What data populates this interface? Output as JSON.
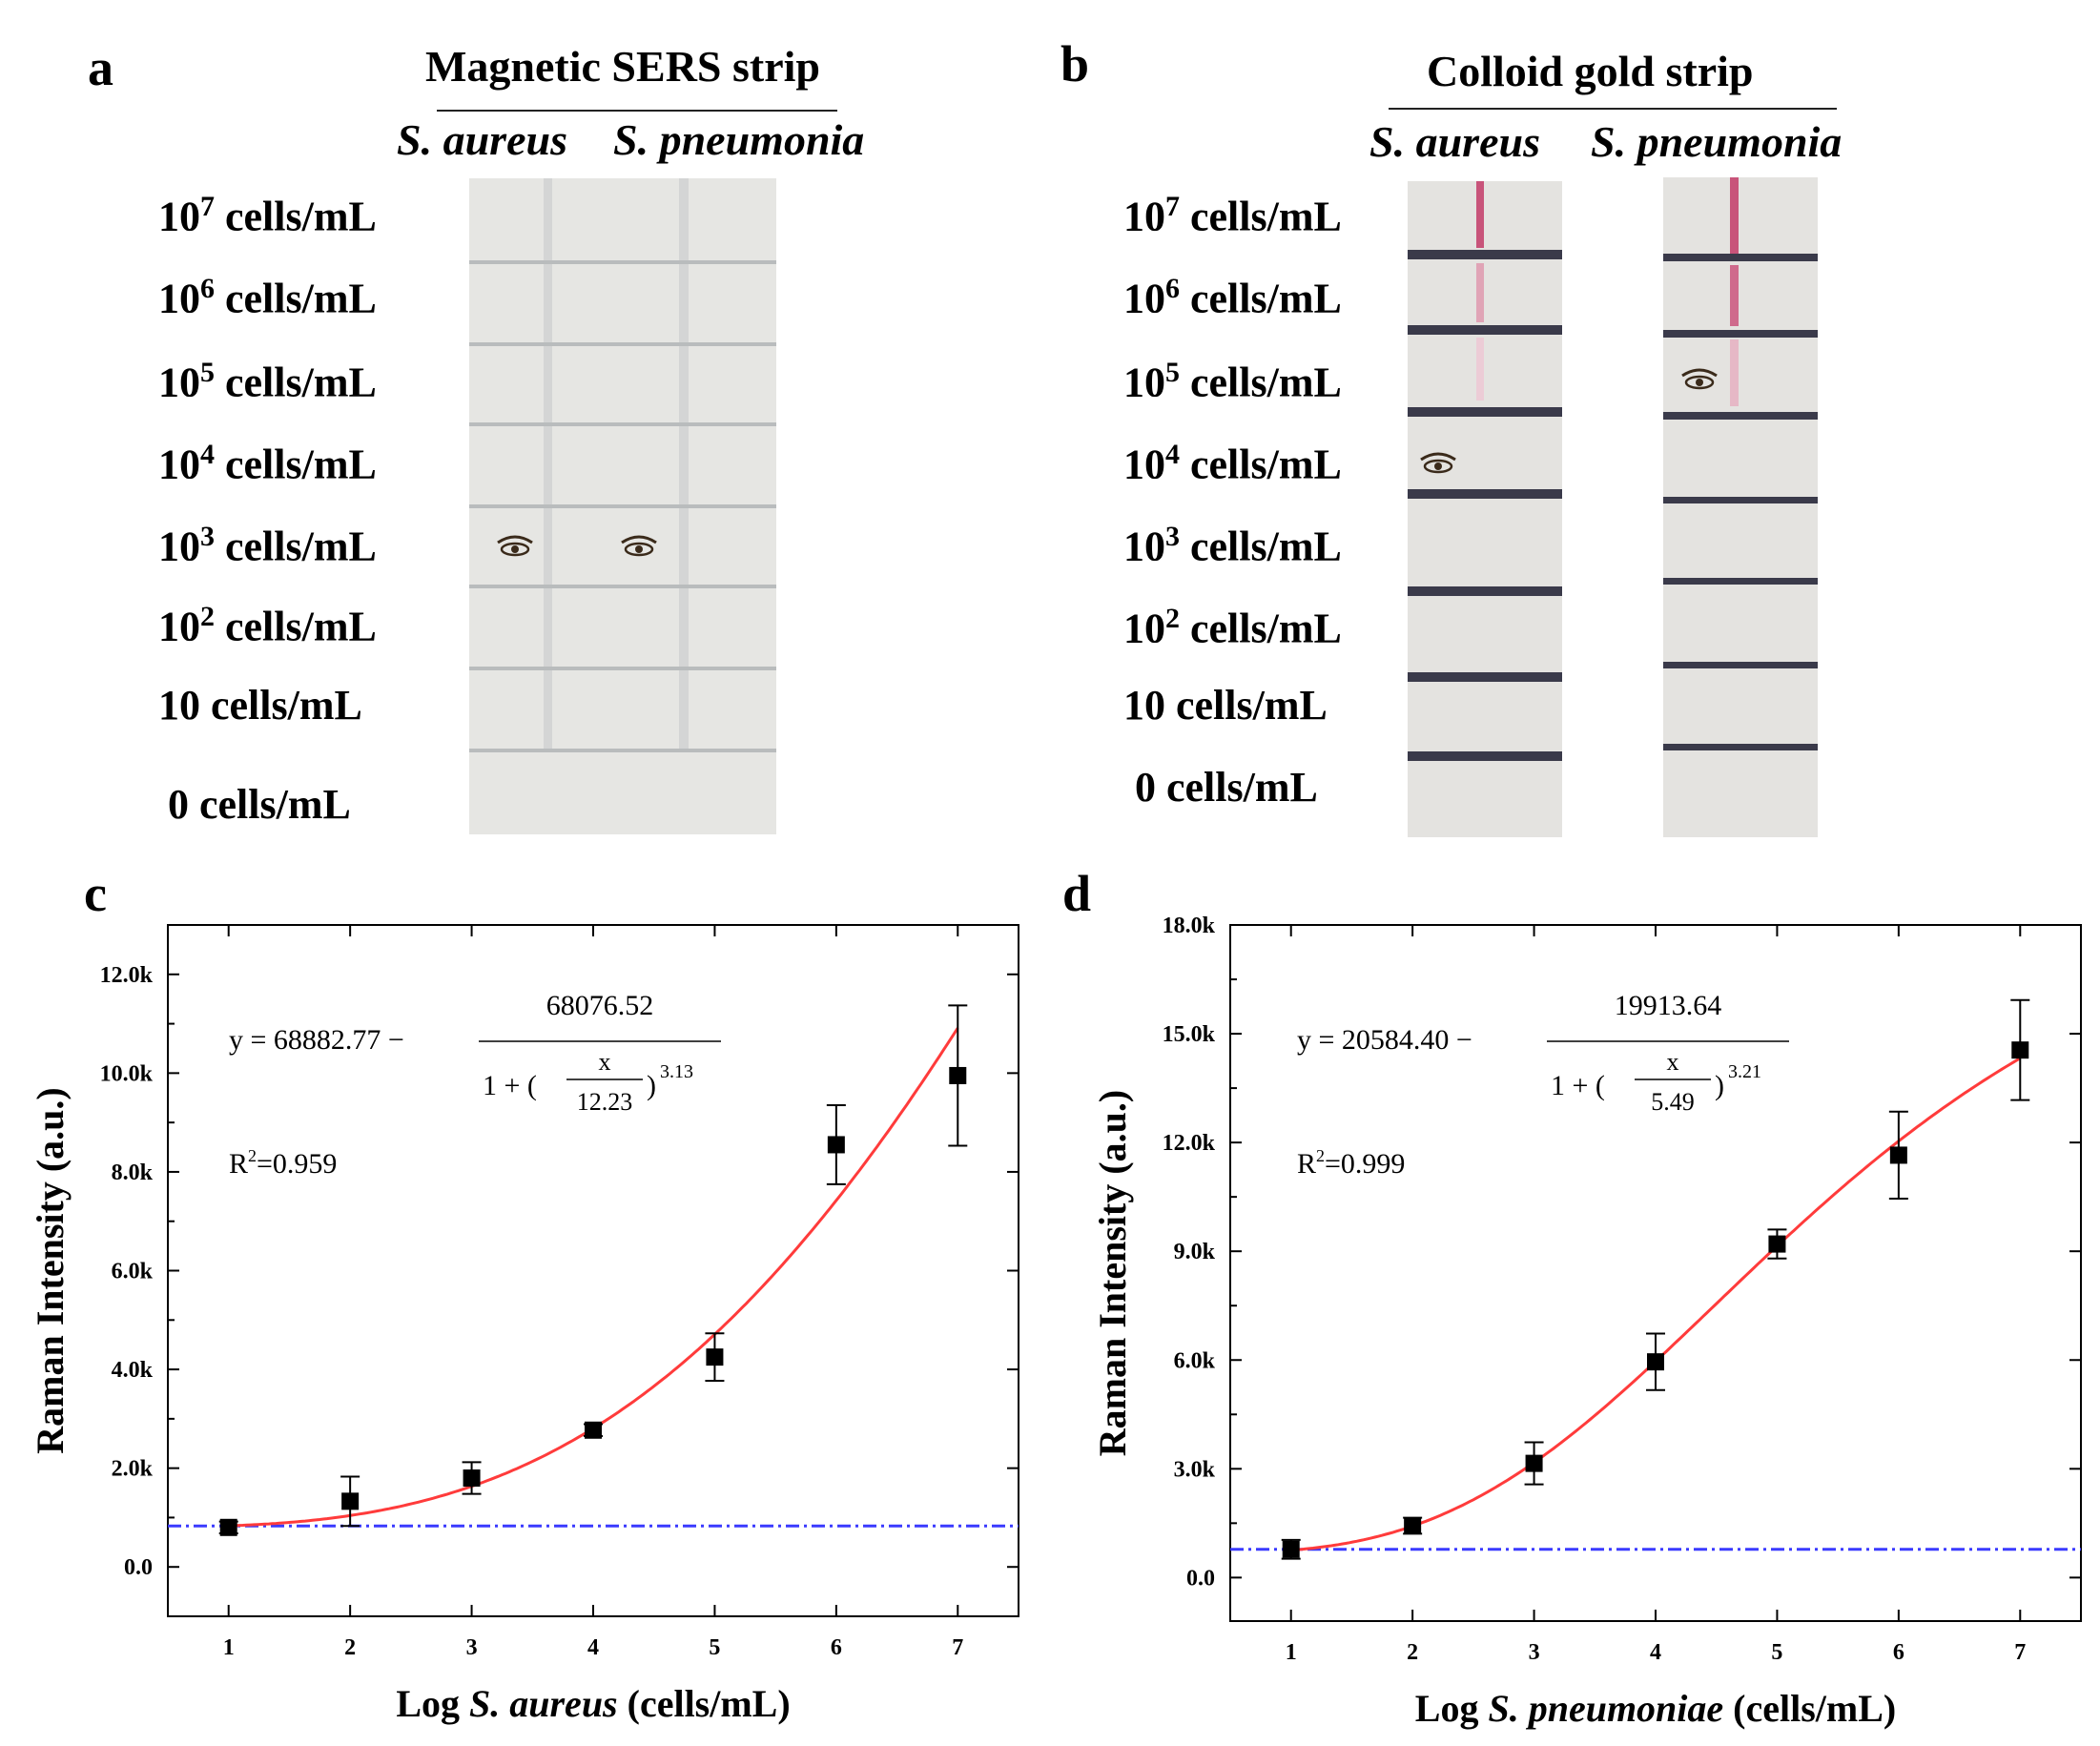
{
  "panels": {
    "a": {
      "letter": "a",
      "title": "Magnetic SERS strip",
      "species": [
        "S. aureus",
        "S. pneumonia"
      ],
      "rows": [
        {
          "base": "10",
          "exp": "7",
          "unit": "cells/mL"
        },
        {
          "base": "10",
          "exp": "6",
          "unit": "cells/mL"
        },
        {
          "base": "10",
          "exp": "5",
          "unit": "cells/mL"
        },
        {
          "base": "10",
          "exp": "4",
          "unit": "cells/mL"
        },
        {
          "base": "10",
          "exp": "3",
          "unit": "cells/mL"
        },
        {
          "base": "10",
          "exp": "2",
          "unit": "cells/mL"
        },
        {
          "base": "10",
          "exp": "",
          "unit": "cells/mL"
        },
        {
          "base": "0",
          "exp": "",
          "unit": "cells/mL"
        }
      ],
      "detection_limit": {
        "S. aureus": "10^3 cells/mL",
        "S. pneumonia": "10^3 cells/mL"
      }
    },
    "b": {
      "letter": "b",
      "title": "Colloid gold strip",
      "species": [
        "S. aureus",
        "S. pneumonia"
      ],
      "rows": [
        {
          "base": "10",
          "exp": "7",
          "unit": "cells/mL"
        },
        {
          "base": "10",
          "exp": "6",
          "unit": "cells/mL"
        },
        {
          "base": "10",
          "exp": "5",
          "unit": "cells/mL"
        },
        {
          "base": "10",
          "exp": "4",
          "unit": "cells/mL"
        },
        {
          "base": "10",
          "exp": "3",
          "unit": "cells/mL"
        },
        {
          "base": "10",
          "exp": "2",
          "unit": "cells/mL"
        },
        {
          "base": "10",
          "exp": "",
          "unit": "cells/mL"
        },
        {
          "base": "0",
          "exp": "",
          "unit": "cells/mL"
        }
      ],
      "detection_limit": {
        "S. aureus": "10^4 cells/mL",
        "S. pneumonia": "10^5 cells/mL"
      }
    }
  },
  "colors": {
    "fit": "#ff3b3b",
    "baseline": "#3a3aff",
    "point": "#000000",
    "gold_line": "#c8547a",
    "sers_line": "#c9cbcb",
    "strip_bg": "#e6e6e3",
    "divider_dark": "#3a3a4a"
  },
  "chart_data": [
    {
      "panel": "c",
      "type": "scatter",
      "title": "",
      "xlabel_prefix": "Log",
      "xlabel_species": "S. aureus",
      "xlabel_suffix": "(cells/mL)",
      "ylabel": "Raman Intensity (a.u.)",
      "x": [
        1,
        2,
        3,
        4,
        5,
        6,
        7
      ],
      "y": [
        800,
        1330,
        1800,
        2770,
        4250,
        8550,
        9950
      ],
      "err": [
        120,
        500,
        320,
        120,
        480,
        800,
        1420
      ],
      "xlim": [
        0.5,
        7.5
      ],
      "ylim": [
        -1000,
        13000
      ],
      "xticks": [
        1,
        2,
        3,
        4,
        5,
        6,
        7
      ],
      "yticks": [
        0,
        2000,
        4000,
        6000,
        8000,
        10000,
        12000
      ],
      "ytick_labels": [
        "0.0",
        "2.0k",
        "4.0k",
        "6.0k",
        "8.0k",
        "10.0k",
        "12.0k"
      ],
      "baseline_y": 830,
      "fit": {
        "A1": 806.25,
        "A2": 68882.77,
        "x0": 12.23,
        "p": 3.13
      },
      "equation": {
        "lhs": "y = 68882.77 −",
        "numerator": "68076.52",
        "denom_left": "1 + (",
        "frac_num": "x",
        "frac_den": "12.23",
        "denom_right": ")",
        "exponent": "3.13"
      },
      "r2_label": "R",
      "r2_sup": "2",
      "r2_value": "=0.959"
    },
    {
      "panel": "d",
      "type": "scatter",
      "title": "",
      "xlabel_prefix": "Log",
      "xlabel_species": "S. pneumoniae",
      "xlabel_suffix": "(cells/mL)",
      "ylabel": "Raman Intensity (a.u.)",
      "x": [
        1,
        2,
        3,
        4,
        5,
        6,
        7
      ],
      "y": [
        780,
        1430,
        3150,
        5950,
        9200,
        11650,
        14550
      ],
      "err": [
        260,
        220,
        580,
        780,
        400,
        1200,
        1380
      ],
      "xlim": [
        0.5,
        7.5
      ],
      "ylim": [
        -1200,
        18000
      ],
      "xticks": [
        1,
        2,
        3,
        4,
        5,
        6,
        7
      ],
      "yticks": [
        0,
        3000,
        6000,
        9000,
        12000,
        15000,
        18000
      ],
      "ytick_labels": [
        "0.0",
        "3.0k",
        "6.0k",
        "9.0k",
        "12.0k",
        "15.0k",
        "18.0k"
      ],
      "baseline_y": 780,
      "fit": {
        "A1": 670.76,
        "A2": 20584.4,
        "x0": 5.49,
        "p": 3.21
      },
      "equation": {
        "lhs": "y = 20584.40 −",
        "numerator": "19913.64",
        "denom_left": "1 + (",
        "frac_num": "x",
        "frac_den": "5.49",
        "denom_right": ")",
        "exponent": "3.21"
      },
      "r2_label": "R",
      "r2_sup": "2",
      "r2_value": "=0.999"
    }
  ],
  "chart_letters": [
    "c",
    "d"
  ]
}
